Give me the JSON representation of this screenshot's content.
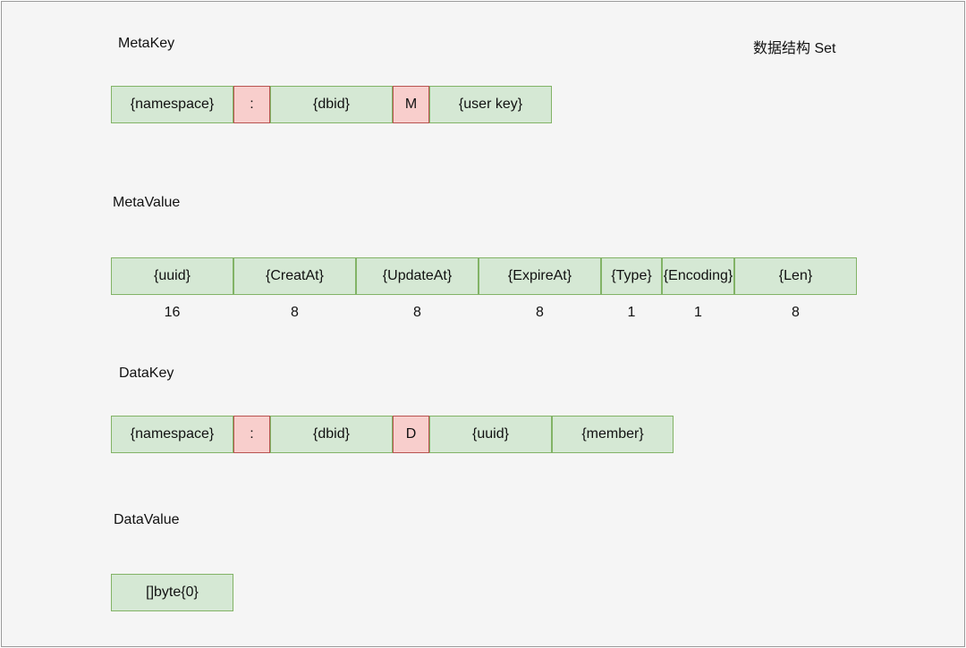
{
  "title": "数据结构 Set",
  "meta_key": {
    "label": "MetaKey",
    "cells": [
      "{namespace}",
      ":",
      "{dbid}",
      "M",
      "{user key}"
    ]
  },
  "meta_value": {
    "label": "MetaValue",
    "cells": [
      "{uuid}",
      "{CreatAt}",
      "{UpdateAt}",
      "{ExpireAt}",
      "{Type}",
      "{Encoding}",
      "{Len}"
    ],
    "sizes": [
      "16",
      "8",
      "8",
      "8",
      "1",
      "1",
      "8"
    ]
  },
  "data_key": {
    "label": "DataKey",
    "cells": [
      "{namespace}",
      ":",
      "{dbid}",
      "D",
      "{uuid}",
      "{member}"
    ]
  },
  "data_value": {
    "label": "DataValue",
    "cells": [
      "[]byte{0}"
    ]
  },
  "colors": {
    "field_fill": "#d5e8d4",
    "field_border": "#82b366",
    "separator_fill": "#f8cecc",
    "separator_border": "#b85450"
  }
}
